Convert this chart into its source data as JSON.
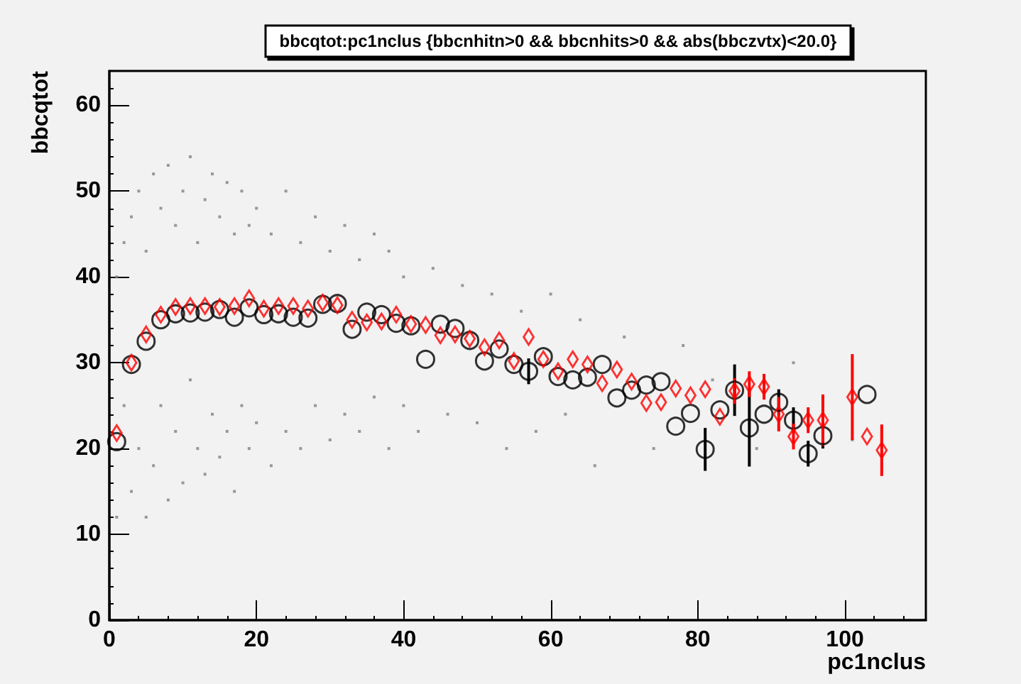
{
  "chart_data": {
    "type": "scatter",
    "title": "bbcqtot:pc1nclus {bbcnhitn>0 && bbcnhits>0 && abs(bbczvtx)<20.0}",
    "xlabel": "pc1nclus",
    "ylabel": "bbcqtot",
    "xlim": [
      0,
      111
    ],
    "ylim": [
      0,
      64
    ],
    "xticks": [
      0,
      20,
      40,
      60,
      80,
      100
    ],
    "yticks": [
      0,
      10,
      20,
      30,
      40,
      50,
      60
    ],
    "grid": false,
    "series": [
      {
        "color": "#808080",
        "marker": "square",
        "x": [
          1,
          1,
          2,
          2,
          3,
          3,
          4,
          4,
          5,
          5,
          6,
          6,
          7,
          7,
          8,
          8,
          9,
          9,
          10,
          10,
          11,
          11,
          12,
          12,
          13,
          13,
          14,
          14,
          15,
          15,
          16,
          16,
          17,
          17,
          18,
          18,
          19,
          19,
          20,
          20,
          22,
          22,
          24,
          24,
          26,
          26,
          28,
          28,
          30,
          30,
          32,
          32,
          34,
          34,
          36,
          36,
          38,
          38,
          40,
          40,
          42,
          44,
          46,
          48,
          50,
          52,
          54,
          56,
          58,
          60,
          62,
          64,
          66,
          70,
          74,
          78,
          82,
          88,
          93,
          101
        ],
        "values": [
          12,
          40,
          25,
          44,
          15,
          47,
          20,
          50,
          12,
          43,
          18,
          52,
          25,
          48,
          14,
          53,
          22,
          46,
          16,
          50,
          28,
          54,
          20,
          44,
          17,
          49,
          24,
          52,
          19,
          47,
          22,
          51,
          15,
          45,
          25,
          50,
          20,
          46,
          23,
          48,
          18,
          45,
          22,
          50,
          20,
          44,
          25,
          47,
          21,
          43,
          24,
          46,
          22,
          42,
          26,
          45,
          20,
          43,
          25,
          40,
          22,
          41,
          24,
          39,
          23,
          38,
          20,
          36,
          22,
          38,
          24,
          35,
          18,
          33,
          20,
          32,
          28,
          20,
          30,
          21
        ]
      },
      {
        "color": "#000000",
        "marker": "circle",
        "x": [
          1,
          3,
          5,
          7,
          9,
          11,
          13,
          15,
          17,
          19,
          21,
          23,
          25,
          27,
          29,
          31,
          33,
          35,
          37,
          39,
          41,
          43,
          45,
          47,
          49,
          51,
          53,
          55,
          57,
          59,
          61,
          63,
          65,
          67,
          69,
          71,
          73,
          75,
          77,
          79,
          81,
          83,
          85,
          87,
          89,
          91,
          93,
          95,
          97,
          103
        ],
        "values": [
          20.8,
          29.8,
          32.5,
          35,
          35.7,
          35.8,
          35.9,
          36.2,
          35.3,
          36.4,
          35.6,
          35.7,
          35.3,
          35.2,
          36.8,
          36.9,
          33.9,
          35.9,
          35.6,
          34.6,
          34.3,
          30.4,
          34.5,
          34,
          32.6,
          30.2,
          31.6,
          29.8,
          29,
          30.7,
          28.4,
          28,
          28.3,
          29.8,
          25.9,
          26.8,
          27.4,
          27.8,
          22.6,
          24.1,
          19.9,
          24.5,
          26.8,
          22.4,
          24,
          25.4,
          23.3,
          19.4,
          21.5,
          26.3
        ],
        "errors": [
          null,
          null,
          null,
          null,
          null,
          null,
          null,
          null,
          null,
          null,
          null,
          null,
          null,
          null,
          null,
          null,
          null,
          null,
          null,
          null,
          null,
          null,
          null,
          null,
          null,
          null,
          null,
          null,
          1.5,
          null,
          null,
          null,
          null,
          null,
          null,
          null,
          null,
          null,
          null,
          null,
          2.5,
          null,
          3,
          4.5,
          null,
          1.5,
          1.5,
          1.5,
          1.5,
          null
        ]
      },
      {
        "color": "#ff0000",
        "marker": "diamond",
        "x": [
          1,
          3,
          5,
          7,
          9,
          11,
          13,
          15,
          17,
          19,
          21,
          23,
          25,
          27,
          29,
          31,
          33,
          35,
          37,
          39,
          41,
          43,
          45,
          47,
          49,
          51,
          53,
          55,
          57,
          59,
          61,
          63,
          65,
          67,
          69,
          71,
          73,
          75,
          77,
          79,
          81,
          83,
          85,
          87,
          89,
          91,
          93,
          95,
          97,
          101,
          103,
          105
        ],
        "values": [
          21.8,
          30,
          33.3,
          35.6,
          36.5,
          36.6,
          36.6,
          36.5,
          36.6,
          37.5,
          36.3,
          36.6,
          36.6,
          36.3,
          37,
          36.7,
          35,
          34.7,
          34.8,
          35.6,
          34.5,
          34.4,
          33.2,
          33.3,
          32.8,
          31.8,
          32.6,
          30.2,
          33,
          30.4,
          29,
          30.4,
          29.8,
          27.6,
          29.2,
          27.8,
          25.3,
          25.4,
          27,
          26.2,
          26.9,
          23.7,
          26.7,
          27.5,
          27.2,
          24,
          21.4,
          23.3,
          23.3,
          26,
          21.4,
          19.8
        ],
        "errors": [
          null,
          null,
          null,
          null,
          null,
          null,
          null,
          null,
          null,
          null,
          null,
          null,
          null,
          null,
          null,
          null,
          null,
          null,
          null,
          null,
          null,
          null,
          null,
          null,
          null,
          null,
          null,
          null,
          null,
          null,
          null,
          null,
          null,
          null,
          null,
          null,
          null,
          null,
          null,
          null,
          null,
          null,
          1.5,
          1.5,
          1.5,
          2,
          1.5,
          1.5,
          3,
          5,
          null,
          3
        ]
      }
    ]
  }
}
